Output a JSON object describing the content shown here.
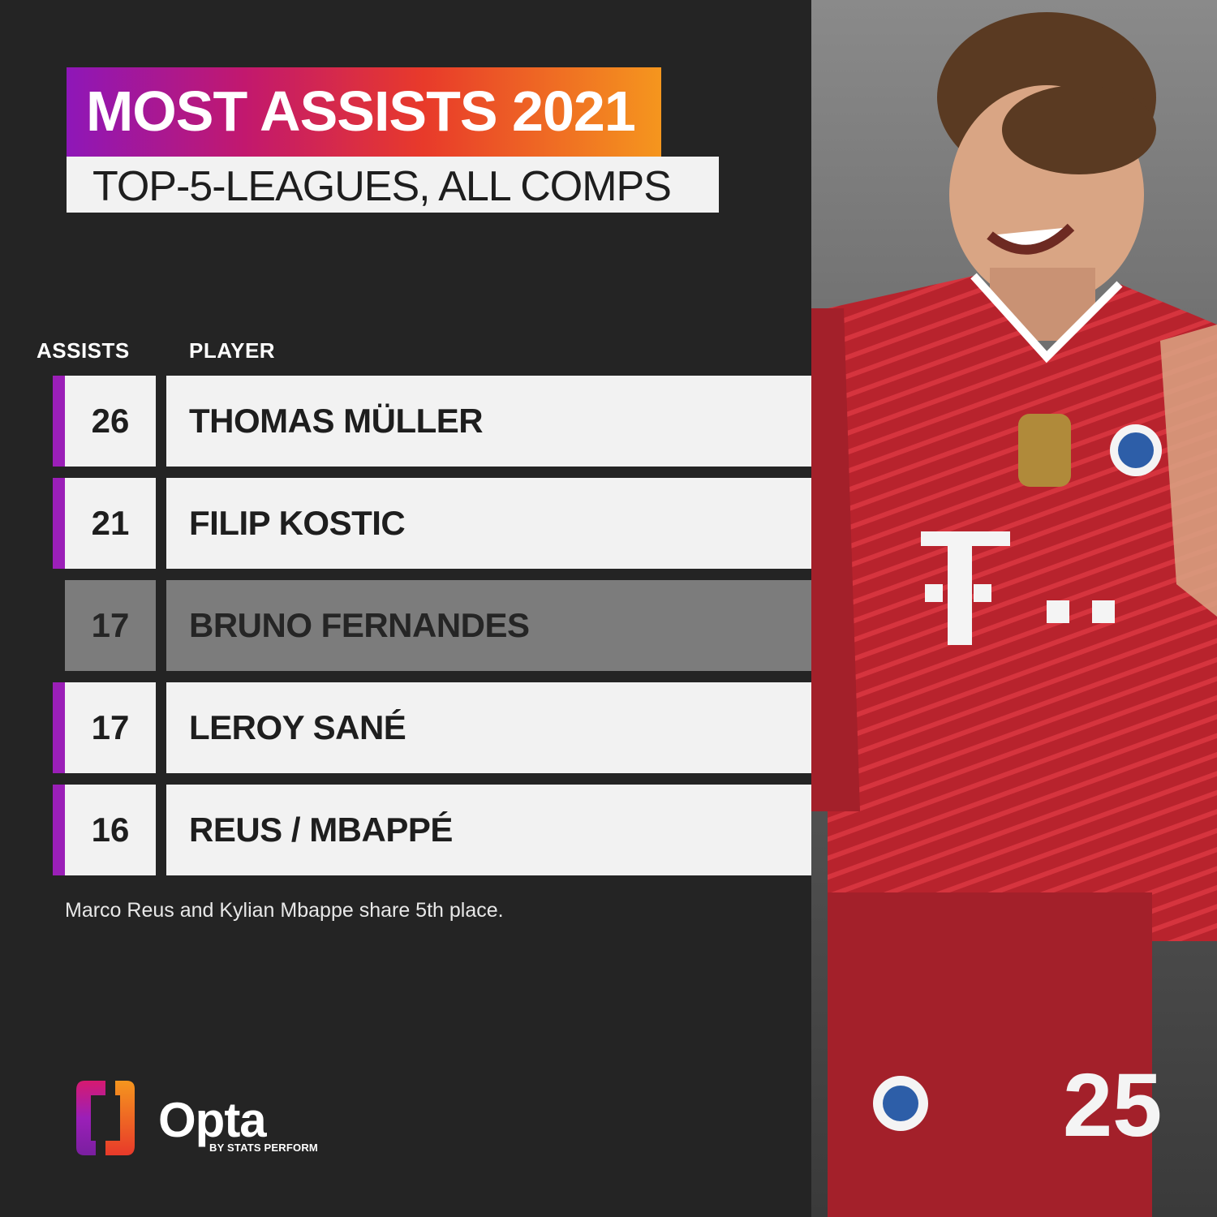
{
  "title": "MOST ASSISTS 2021",
  "subtitle": "TOP-5-LEAGUES, ALL COMPS",
  "columns": {
    "value": "ASSISTS",
    "name": "PLAYER"
  },
  "footnote": "Marco Reus and Kylian Mbappe share 5th place.",
  "brand": {
    "name": "Opta",
    "tagline": "BY STATS PERFORM"
  },
  "colors": {
    "accent": "#9b1fb8",
    "row_bg": "#f2f2f2",
    "muted_row_bg": "#7c7c7c",
    "background": "#242424"
  },
  "chart_data": {
    "type": "table",
    "title": "MOST ASSISTS 2021",
    "subtitle": "TOP-5-LEAGUES, ALL COMPS",
    "columns": [
      "ASSISTS",
      "PLAYER"
    ],
    "rows": [
      {
        "value": "26",
        "name": "THOMAS MÜLLER",
        "muted": false
      },
      {
        "value": "21",
        "name": "FILIP KOSTIC",
        "muted": false
      },
      {
        "value": "17",
        "name": "BRUNO FERNANDES",
        "muted": true
      },
      {
        "value": "17",
        "name": "LEROY SANÉ",
        "muted": false
      },
      {
        "value": "16",
        "name": "REUS / MBAPPÉ",
        "muted": false
      }
    ]
  }
}
